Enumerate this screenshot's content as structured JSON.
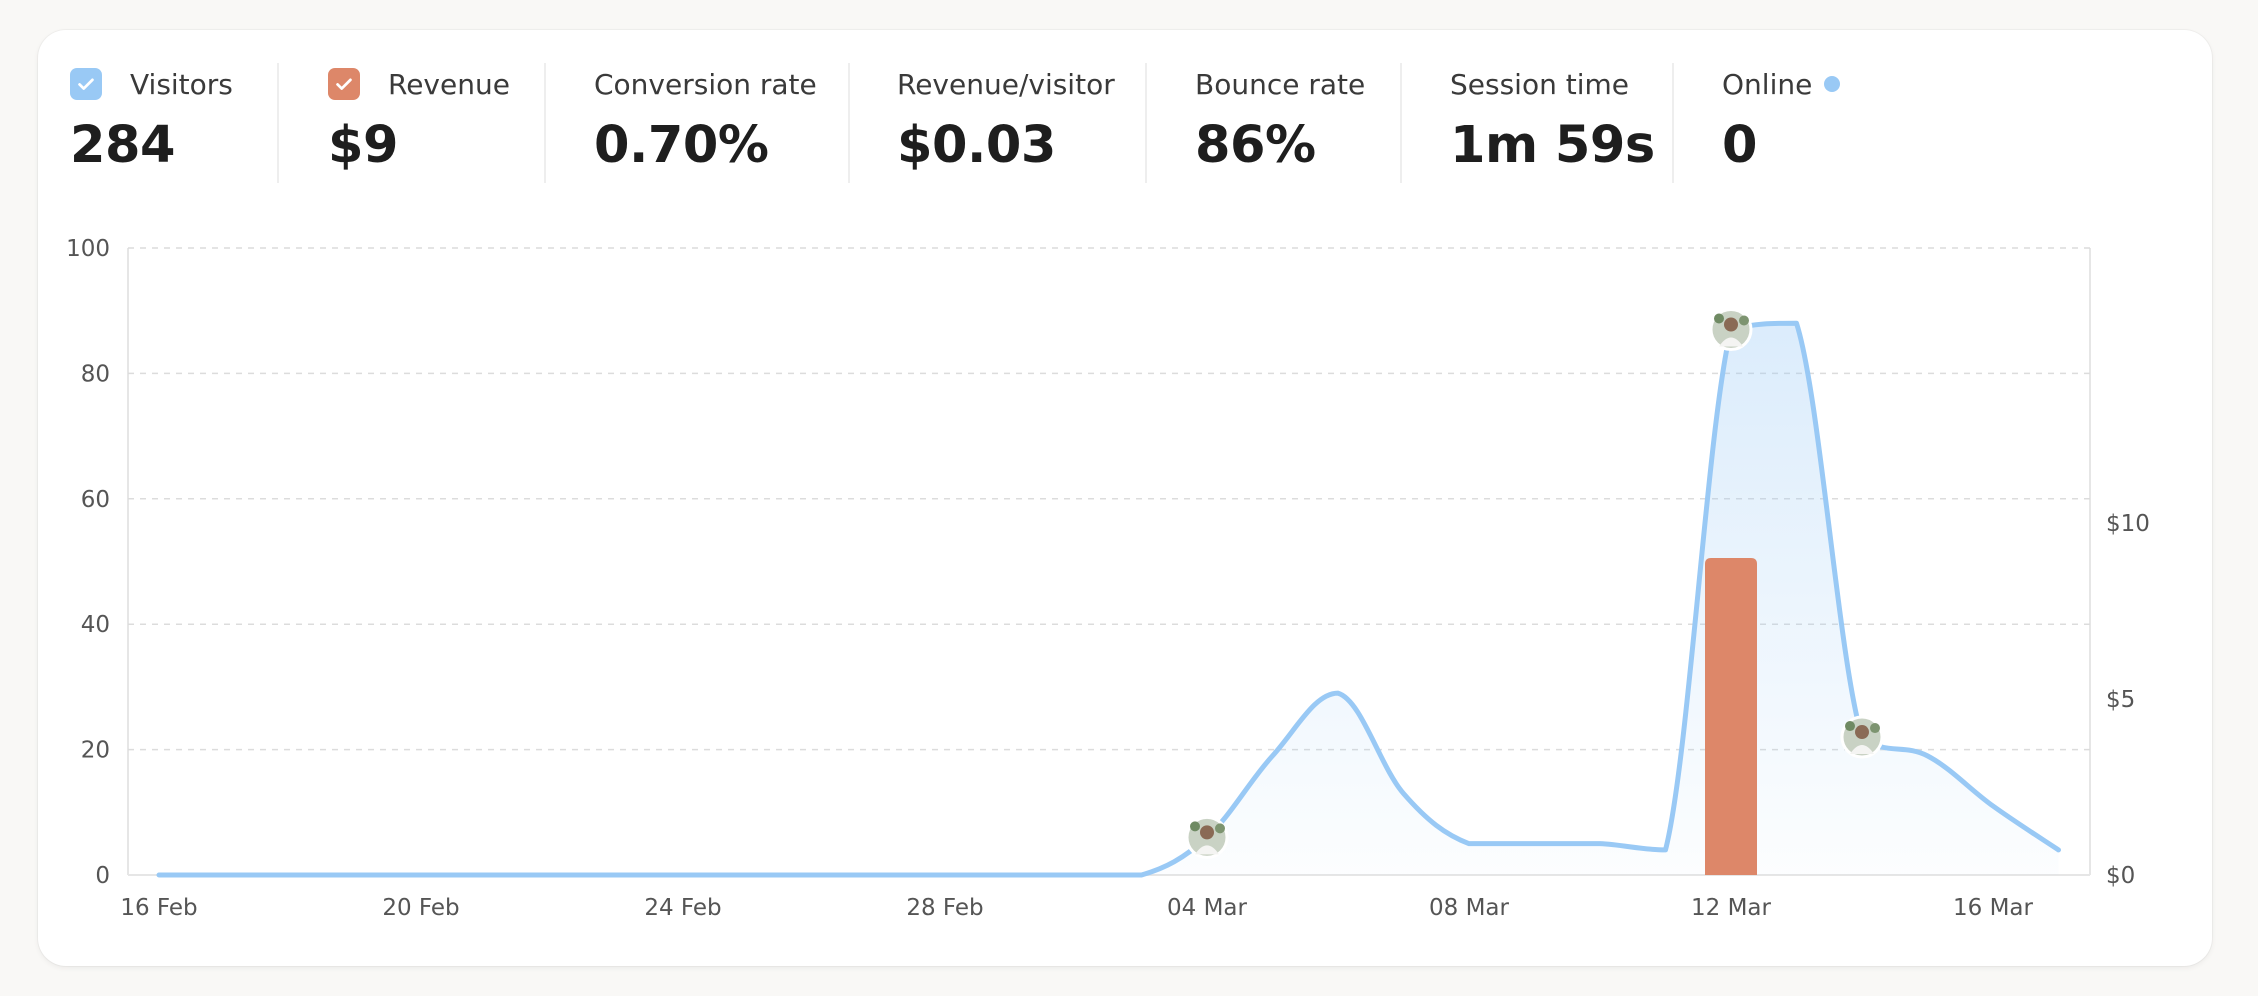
{
  "metrics": [
    {
      "label": "Visitors",
      "value": "284",
      "checked": true,
      "color": "#99c9f5"
    },
    {
      "label": "Revenue",
      "value": "$9",
      "checked": true,
      "color": "#dd8769"
    },
    {
      "label": "Conversion rate",
      "value": "0.70%"
    },
    {
      "label": "Revenue/visitor",
      "value": "$0.03"
    },
    {
      "label": "Bounce rate",
      "value": "86%"
    },
    {
      "label": "Session time",
      "value": "1m 59s"
    },
    {
      "label": "Online",
      "value": "0",
      "dot_color": "#99c9f5"
    }
  ],
  "chart_data": {
    "type": "line",
    "title": "",
    "xlabel": "",
    "ylabel": "",
    "x_ticks": [
      "16 Feb",
      "20 Feb",
      "24 Feb",
      "28 Feb",
      "04 Mar",
      "08 Mar",
      "12 Mar",
      "16 Mar"
    ],
    "y_left_ticks": [
      "0",
      "20",
      "40",
      "60",
      "80",
      "100"
    ],
    "ylim_left": [
      0,
      100
    ],
    "y_right_ticks": [
      "$0",
      "$5",
      "$10"
    ],
    "ylim_right": [
      0,
      17.8
    ],
    "grid": true,
    "series": [
      {
        "type": "area",
        "axis": "left",
        "color": "#99c9f5",
        "x": [
          "16 Feb",
          "17 Feb",
          "18 Feb",
          "19 Feb",
          "20 Feb",
          "21 Feb",
          "22 Feb",
          "23 Feb",
          "24 Feb",
          "25 Feb",
          "26 Feb",
          "27 Feb",
          "28 Feb",
          "01 Mar",
          "02 Mar",
          "03 Mar",
          "04 Mar",
          "05 Mar",
          "06 Mar",
          "07 Mar",
          "08 Mar",
          "09 Mar",
          "10 Mar",
          "11 Mar",
          "12 Mar",
          "13 Mar",
          "14 Mar",
          "15 Mar",
          "16 Mar",
          "17 Mar"
        ],
        "values": [
          0,
          0,
          0,
          0,
          0,
          0,
          0,
          0,
          0,
          0,
          0,
          0,
          0,
          0,
          0,
          0,
          6,
          19,
          29,
          13,
          5,
          5,
          5,
          4,
          87,
          88,
          22,
          19,
          11,
          4
        ]
      },
      {
        "type": "bar",
        "axis": "right",
        "color": "#dd8769",
        "x": [
          "12 Mar"
        ],
        "values": [
          9
        ]
      }
    ],
    "annotations": [
      {
        "x": "04 Mar",
        "y": 6,
        "icon": "avatar-icon"
      },
      {
        "x": "12 Mar",
        "y": 87,
        "icon": "avatar-icon"
      },
      {
        "x": "14 Mar",
        "y": 22,
        "icon": "avatar-icon"
      }
    ]
  }
}
